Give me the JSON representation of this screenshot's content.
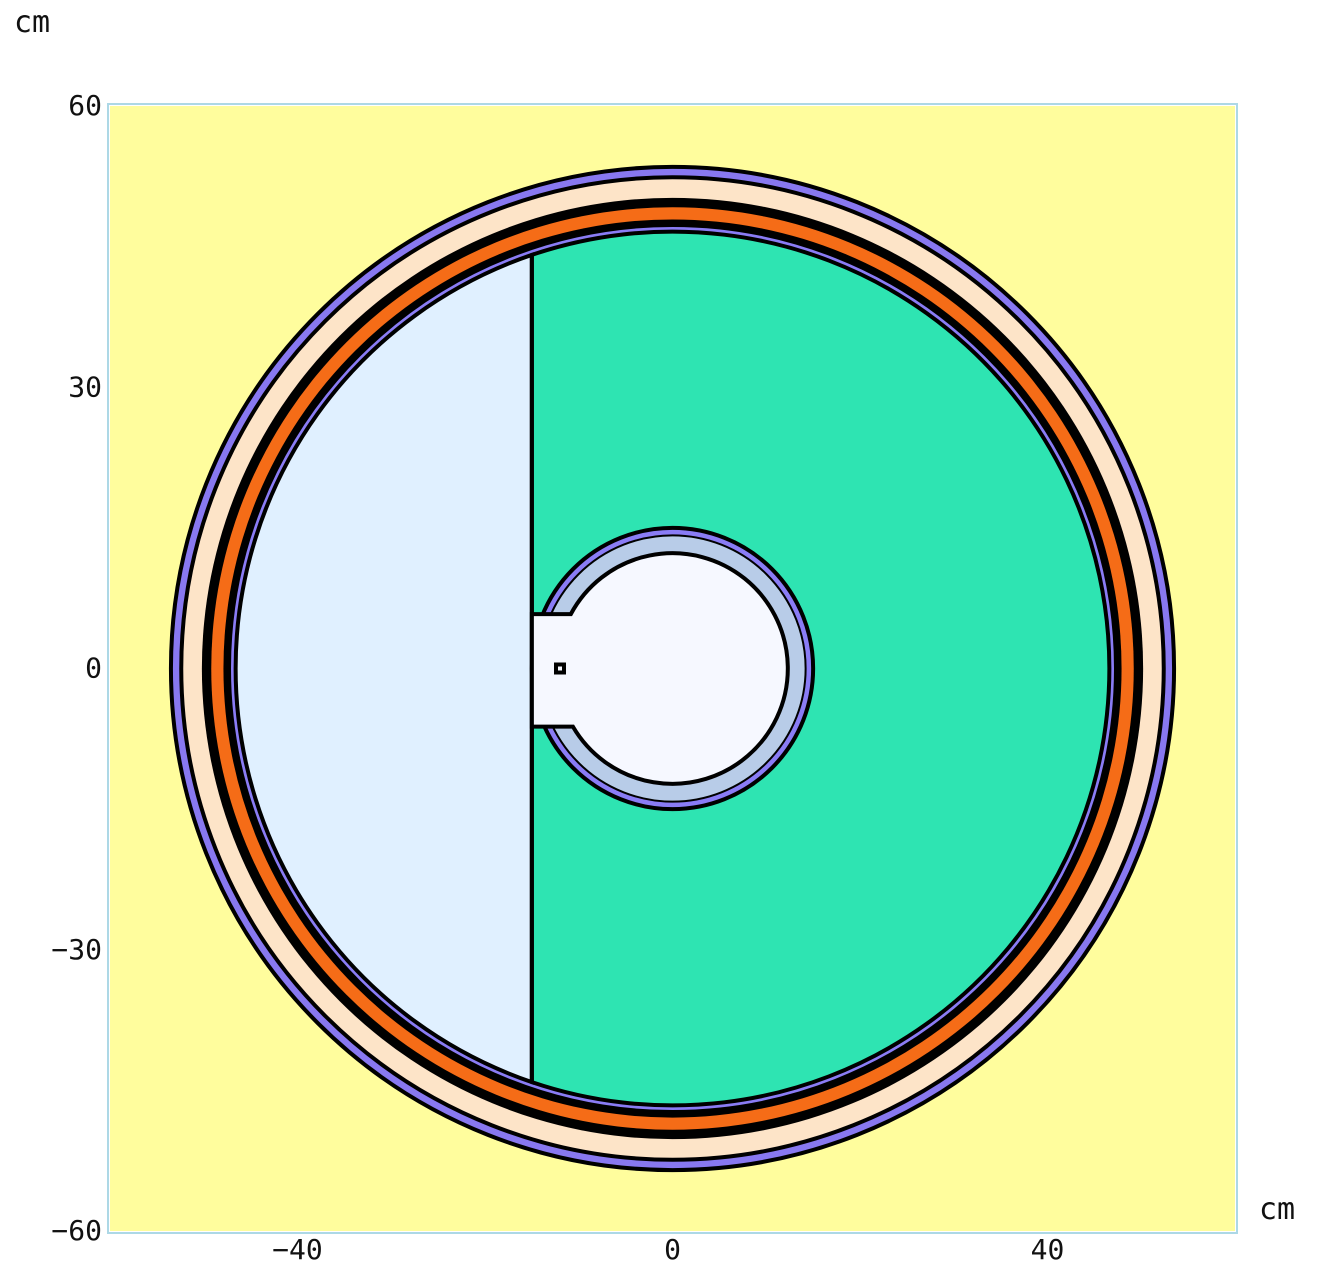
{
  "x_axis": {
    "unit": "cm",
    "range": [
      -60,
      60
    ],
    "ticks": [
      {
        "value": -40,
        "label": "−40"
      },
      {
        "value": 0,
        "label": "0"
      },
      {
        "value": 40,
        "label": "40"
      }
    ]
  },
  "y_axis": {
    "unit": "cm",
    "range": [
      -60,
      60
    ],
    "ticks": [
      {
        "value": 60,
        "label": "60"
      },
      {
        "value": 30,
        "label": "30"
      },
      {
        "value": 0,
        "label": "0"
      },
      {
        "value": -30,
        "label": "−30"
      },
      {
        "value": -60,
        "label": "−60"
      }
    ]
  },
  "colors": {
    "background": "#fffd9d",
    "frame": "#add8e6",
    "outline": "#000000",
    "outer_ring": "#8878f0",
    "peach_ring": "#fde4c8",
    "orange_ring": "#f56c17",
    "inner_violet_ring": "#8a7cf5",
    "left_region": "#e0f0ff",
    "right_region": "#2ee4b2",
    "center_ring": "#b8cce8",
    "center_core": "#f6f8ff",
    "marker": "#000000"
  },
  "geometry": {
    "outer_ring_radius": 53.5,
    "peach_ring_radius": 52.4,
    "black_ring_outer_radius": 50.2,
    "orange_ring_radius": 49.2,
    "black_ring_inner_radius": 47.9,
    "violet_ring_radius": 47.2,
    "main_region_radius": 46.6,
    "split_x": -15,
    "center_outer_radius": 15.0,
    "center_mid_radius": 14.2,
    "center_inner_radius": 12.3,
    "slot_x_range": [
      -15,
      -11.5
    ],
    "slot_y_range": [
      -6.2,
      5.8
    ],
    "marker_position": [
      -12,
      0
    ]
  }
}
